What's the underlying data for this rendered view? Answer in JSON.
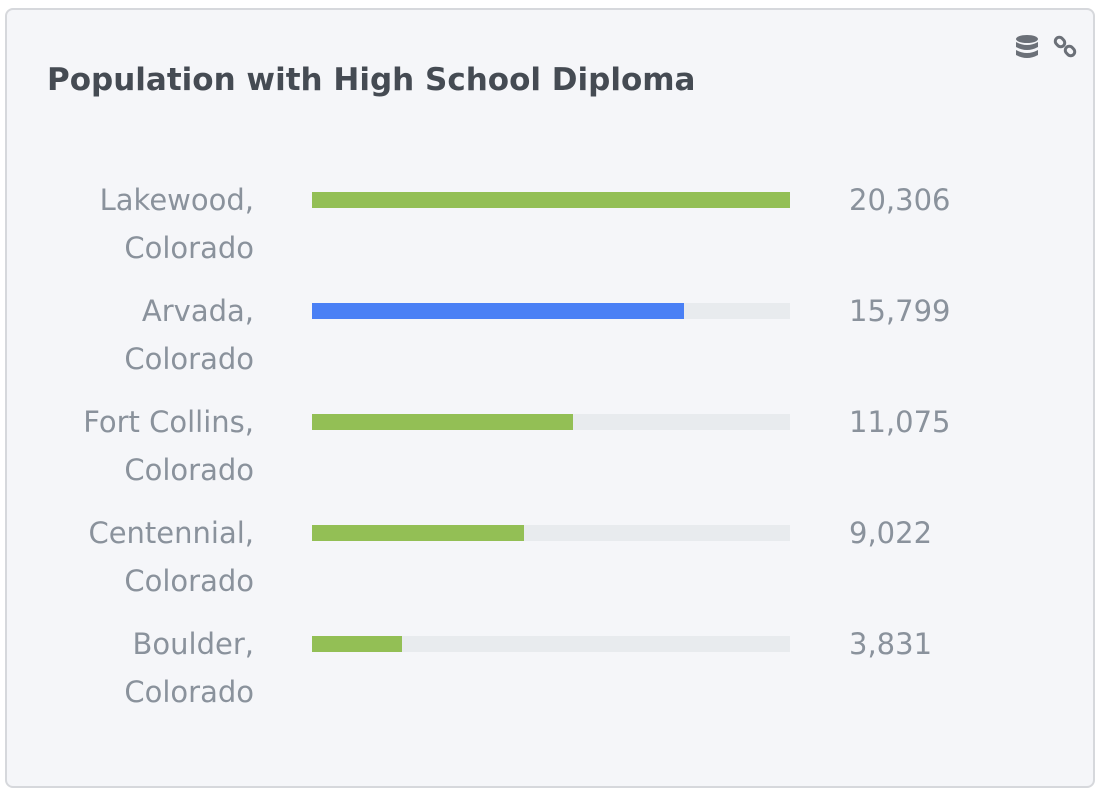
{
  "chart_data": {
    "type": "bar",
    "orientation": "horizontal",
    "title": "Population with High School Diploma",
    "categories": [
      "Lakewood, Colorado",
      "Arvada, Colorado",
      "Fort Collins, Colorado",
      "Centennial, Colorado",
      "Boulder, Colorado"
    ],
    "values": [
      20306,
      15799,
      11075,
      9022,
      3831
    ],
    "value_labels": [
      "20,306",
      "15,799",
      "11,075",
      "9,022",
      "3,831"
    ],
    "colors": [
      "#93bf55",
      "#4a80f5",
      "#93bf55",
      "#93bf55",
      "#93bf55"
    ],
    "xlim": [
      0,
      20306
    ]
  }
}
